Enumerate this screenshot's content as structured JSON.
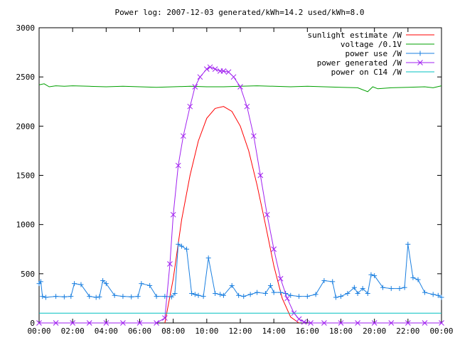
{
  "chart_data": {
    "type": "line",
    "title": "Power log: 2007-12-03 generated/kWh=14.2 used/kWh=8.0",
    "xlabel": "",
    "ylabel": "",
    "xlim": [
      0,
      24
    ],
    "ylim": [
      0,
      3000
    ],
    "x_tick_labels": [
      "00:00",
      "02:00",
      "04:00",
      "06:00",
      "08:00",
      "10:00",
      "12:00",
      "14:00",
      "16:00",
      "18:00",
      "20:00",
      "22:00",
      "00:00"
    ],
    "x_tick_values": [
      0,
      2,
      4,
      6,
      8,
      10,
      12,
      14,
      16,
      18,
      20,
      22,
      24
    ],
    "y_ticks": [
      0,
      500,
      1000,
      1500,
      2000,
      2500,
      3000
    ],
    "grid": false,
    "legend_position": "top-right",
    "series": [
      {
        "name": "sunlight estimate /W",
        "color": "#ff0000",
        "marker": "none",
        "x": [
          7.5,
          8.0,
          8.5,
          9.0,
          9.5,
          10.0,
          10.5,
          11.0,
          11.5,
          12.0,
          12.5,
          13.0,
          13.5,
          14.0,
          14.5,
          15.0,
          15.5
        ],
        "y": [
          0,
          450,
          1050,
          1500,
          1850,
          2080,
          2180,
          2200,
          2150,
          2000,
          1750,
          1400,
          1000,
          580,
          250,
          60,
          0
        ]
      },
      {
        "name": "voltage /0.1V",
        "color": "#00a000",
        "marker": "none",
        "x": [
          0,
          0.3,
          0.6,
          1.0,
          1.5,
          2.0,
          3.0,
          4.0,
          5.0,
          6.0,
          7.0,
          8.0,
          9.0,
          10.0,
          11.0,
          12.0,
          13.0,
          14.0,
          15.0,
          16.0,
          17.0,
          18.0,
          19.0,
          19.6,
          19.9,
          20.2,
          21.0,
          22.0,
          23.0,
          23.5,
          24.0
        ],
        "y": [
          2420,
          2430,
          2400,
          2410,
          2405,
          2410,
          2405,
          2400,
          2405,
          2400,
          2395,
          2400,
          2405,
          2400,
          2400,
          2405,
          2410,
          2405,
          2400,
          2405,
          2400,
          2395,
          2390,
          2350,
          2400,
          2380,
          2390,
          2395,
          2400,
          2390,
          2410
        ]
      },
      {
        "name": "power use /W",
        "color": "#1a7fe0",
        "marker": "plus",
        "x": [
          0.0,
          0.1,
          0.2,
          0.4,
          1.0,
          1.5,
          1.9,
          2.1,
          2.5,
          3.0,
          3.4,
          3.6,
          3.8,
          4.0,
          4.5,
          5.0,
          5.5,
          5.9,
          6.1,
          6.6,
          7.0,
          7.5,
          7.9,
          8.1,
          8.3,
          8.5,
          8.8,
          9.1,
          9.3,
          9.5,
          9.8,
          10.1,
          10.5,
          10.8,
          11.0,
          11.5,
          11.9,
          12.2,
          12.6,
          13.0,
          13.5,
          13.8,
          14.0,
          14.4,
          14.7,
          15.0,
          15.5,
          16.0,
          16.5,
          17.0,
          17.5,
          17.7,
          18.0,
          18.4,
          18.8,
          19.0,
          19.3,
          19.6,
          19.8,
          20.0,
          20.5,
          21.0,
          21.5,
          21.8,
          22.0,
          22.3,
          22.6,
          23.0,
          23.5,
          23.8,
          24.0
        ],
        "y": [
          400,
          420,
          270,
          260,
          270,
          265,
          270,
          400,
          390,
          270,
          260,
          265,
          430,
          400,
          280,
          270,
          265,
          270,
          400,
          380,
          270,
          270,
          265,
          300,
          800,
          780,
          750,
          300,
          290,
          280,
          270,
          660,
          300,
          290,
          280,
          380,
          280,
          270,
          290,
          310,
          300,
          380,
          310,
          310,
          300,
          280,
          270,
          270,
          290,
          430,
          420,
          260,
          270,
          300,
          360,
          300,
          350,
          300,
          490,
          480,
          360,
          350,
          350,
          360,
          800,
          460,
          440,
          310,
          290,
          280,
          260
        ]
      },
      {
        "name": "power generated /W",
        "color": "#a020f0",
        "marker": "x",
        "x": [
          0,
          1,
          2,
          3,
          4,
          5,
          6,
          7.0,
          7.5,
          7.8,
          8.0,
          8.3,
          8.6,
          9.0,
          9.3,
          9.6,
          10.0,
          10.2,
          10.5,
          10.8,
          11.0,
          11.3,
          11.6,
          12.0,
          12.4,
          12.8,
          13.2,
          13.6,
          14.0,
          14.4,
          14.8,
          15.2,
          15.5,
          15.8,
          16.2,
          17,
          18,
          19,
          20,
          21,
          22,
          23,
          24
        ],
        "y": [
          0,
          0,
          0,
          0,
          0,
          0,
          0,
          0,
          50,
          600,
          1100,
          1600,
          1900,
          2200,
          2400,
          2500,
          2580,
          2600,
          2580,
          2560,
          2560,
          2550,
          2500,
          2400,
          2200,
          1900,
          1500,
          1100,
          750,
          450,
          250,
          100,
          40,
          10,
          0,
          0,
          0,
          0,
          0,
          0,
          0,
          0,
          0
        ]
      },
      {
        "name": "power on C14 /W",
        "color": "#00c0c0",
        "marker": "none",
        "x": [
          0,
          4,
          8,
          12,
          16,
          20,
          24
        ],
        "y": [
          100,
          100,
          100,
          100,
          100,
          100,
          100
        ]
      }
    ]
  }
}
